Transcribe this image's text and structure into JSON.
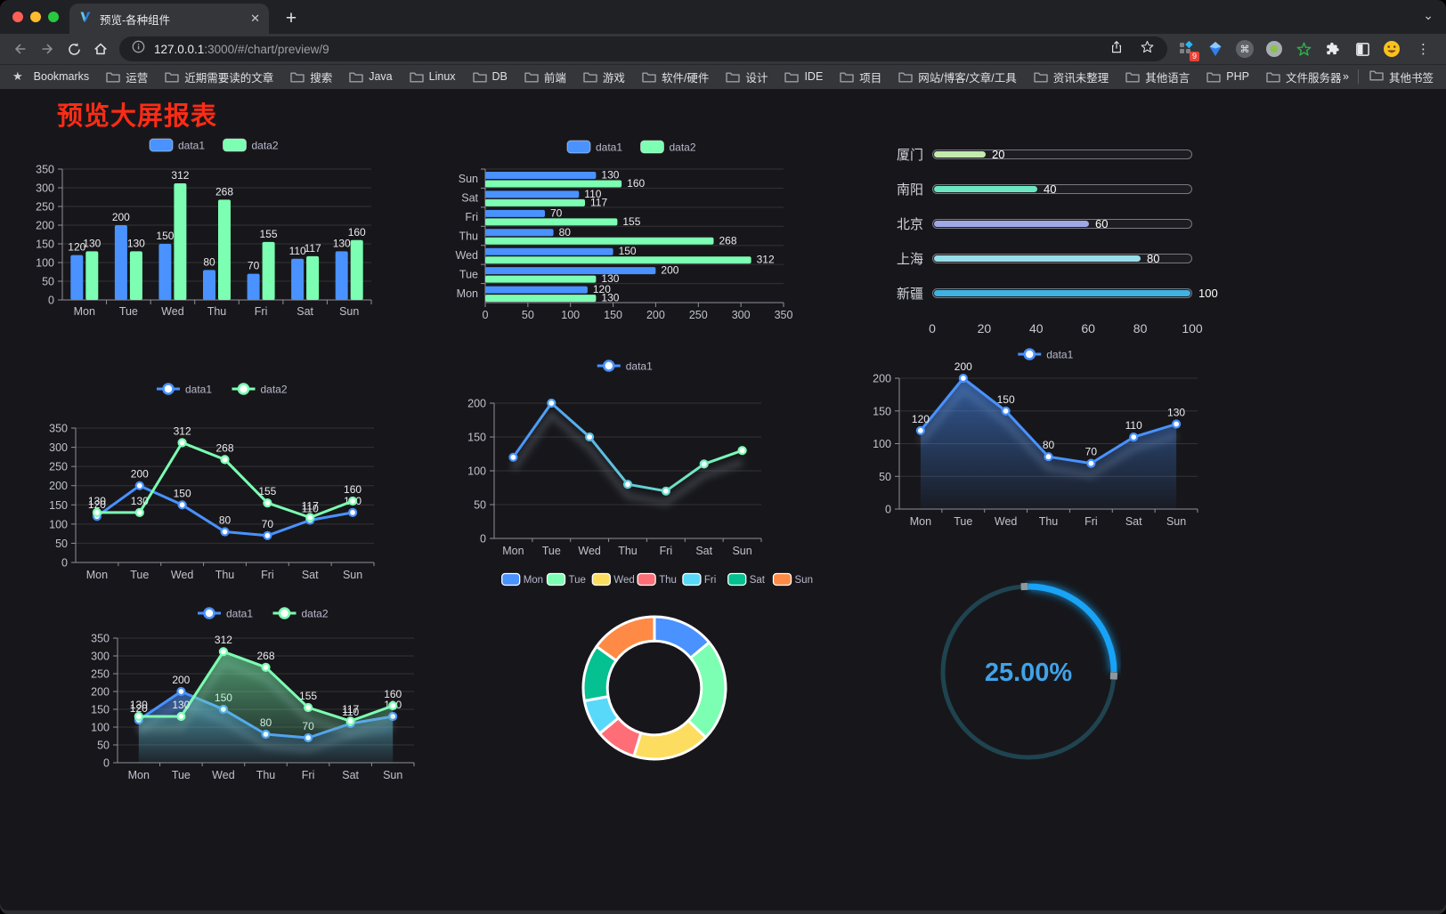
{
  "browser": {
    "traffic_lights": [
      "#ff5f57",
      "#febc2e",
      "#28c840"
    ],
    "tab": {
      "title": "预览-各种组件"
    },
    "address": {
      "host": "127.0.0.1",
      "rest": ":3000/#/chart/preview/9"
    },
    "extensions_badge": "9",
    "bookmarks_bar": {
      "label": "Bookmarks",
      "folders": [
        "运营",
        "近期需要读的文章",
        "搜索",
        "Java",
        "Linux",
        "DB",
        "前端",
        "游戏",
        "软件/硬件",
        "设计",
        "IDE",
        "项目",
        "网站/博客/文章/工具",
        "资讯未整理",
        "其他语言",
        "PHP",
        "文件服务器"
      ],
      "overflow": "»",
      "other": "其他书签"
    }
  },
  "page": {
    "title": "预览大屏报表",
    "title_color": "#fb2c16"
  },
  "chart_data": [
    {
      "id": "grouped-bar",
      "type": "bar",
      "categories": [
        "Mon",
        "Tue",
        "Wed",
        "Thu",
        "Fri",
        "Sat",
        "Sun"
      ],
      "series": [
        {
          "name": "data1",
          "color": "#4992ff",
          "values": [
            120,
            200,
            150,
            80,
            70,
            110,
            130
          ]
        },
        {
          "name": "data2",
          "color": "#7cffb2",
          "values": [
            130,
            130,
            312,
            268,
            155,
            117,
            160
          ]
        }
      ],
      "ylim": [
        0,
        350
      ],
      "yticks": [
        0,
        50,
        100,
        150,
        200,
        250,
        300,
        350
      ],
      "legend_position": "top",
      "grid": true,
      "show_labels": true
    },
    {
      "id": "horizontal-bar",
      "type": "bar-horizontal",
      "categories": [
        "Mon",
        "Tue",
        "Wed",
        "Thu",
        "Fri",
        "Sat",
        "Sun"
      ],
      "series": [
        {
          "name": "data1",
          "color": "#4992ff",
          "values": [
            120,
            200,
            150,
            80,
            70,
            110,
            130
          ]
        },
        {
          "name": "data2",
          "color": "#7cffb2",
          "values": [
            130,
            130,
            312,
            268,
            155,
            117,
            160
          ]
        }
      ],
      "xlim": [
        0,
        350
      ],
      "xticks": [
        0,
        50,
        100,
        150,
        200,
        250,
        300,
        350
      ],
      "legend_position": "top",
      "grid": true,
      "show_labels": true
    },
    {
      "id": "capsule-bar",
      "type": "bar-horizontal",
      "items": [
        {
          "label": "厦门",
          "value": 20,
          "color": "#c4ebad"
        },
        {
          "label": "南阳",
          "value": 40,
          "color": "#6be6c1"
        },
        {
          "label": "北京",
          "value": 60,
          "color": "#a0a7e6"
        },
        {
          "label": "上海",
          "value": 80,
          "color": "#96dee8"
        },
        {
          "label": "新疆",
          "value": 100,
          "color": "#3fb1e3"
        }
      ],
      "xlim": [
        0,
        100
      ],
      "xticks": [
        0,
        20,
        40,
        60,
        80,
        100
      ],
      "show_labels": true
    },
    {
      "id": "multi-line",
      "type": "line",
      "categories": [
        "Mon",
        "Tue",
        "Wed",
        "Thu",
        "Fri",
        "Sat",
        "Sun"
      ],
      "series": [
        {
          "name": "data1",
          "color": "#4992ff",
          "values": [
            120,
            200,
            150,
            80,
            70,
            110,
            130
          ]
        },
        {
          "name": "data2",
          "color": "#7cffb2",
          "values": [
            130,
            130,
            312,
            268,
            155,
            117,
            160
          ]
        }
      ],
      "ylim": [
        0,
        350
      ],
      "yticks": [
        0,
        50,
        100,
        150,
        200,
        250,
        300,
        350
      ],
      "legend_position": "top",
      "grid": true,
      "show_labels": true
    },
    {
      "id": "gradient-line",
      "type": "line",
      "categories": [
        "Mon",
        "Tue",
        "Wed",
        "Thu",
        "Fri",
        "Sat",
        "Sun"
      ],
      "series": [
        {
          "name": "data1",
          "color": "#4992ff",
          "gradient": [
            "#4992ff",
            "#7cffb2"
          ],
          "values": [
            120,
            200,
            150,
            80,
            70,
            110,
            130
          ]
        }
      ],
      "ylim": [
        0,
        200
      ],
      "yticks": [
        0,
        50,
        100,
        150,
        200
      ],
      "legend_position": "top",
      "grid": true,
      "show_labels": false,
      "shadow": true
    },
    {
      "id": "area-line",
      "type": "area",
      "categories": [
        "Mon",
        "Tue",
        "Wed",
        "Thu",
        "Fri",
        "Sat",
        "Sun"
      ],
      "series": [
        {
          "name": "data1",
          "color": "#4992ff",
          "area": true,
          "values": [
            120,
            200,
            150,
            80,
            70,
            110,
            130
          ]
        }
      ],
      "ylim": [
        0,
        200
      ],
      "yticks": [
        0,
        50,
        100,
        150,
        200
      ],
      "legend_position": "top",
      "grid": true,
      "show_labels": true,
      "shadow": true
    },
    {
      "id": "multi-area",
      "type": "area",
      "categories": [
        "Mon",
        "Tue",
        "Wed",
        "Thu",
        "Fri",
        "Sat",
        "Sun"
      ],
      "series": [
        {
          "name": "data1",
          "color": "#4992ff",
          "area": true,
          "values": [
            120,
            200,
            150,
            80,
            70,
            110,
            130
          ]
        },
        {
          "name": "data2",
          "color": "#7cffb2",
          "area": true,
          "values": [
            130,
            130,
            312,
            268,
            155,
            117,
            160
          ]
        }
      ],
      "ylim": [
        0,
        350
      ],
      "yticks": [
        0,
        50,
        100,
        150,
        200,
        250,
        300,
        350
      ],
      "legend_position": "top",
      "grid": true,
      "show_labels": true,
      "shadow": true
    },
    {
      "id": "donut",
      "type": "pie",
      "items": [
        {
          "name": "Mon",
          "value": 120,
          "color": "#4992ff"
        },
        {
          "name": "Tue",
          "value": 200,
          "color": "#7cffb2"
        },
        {
          "name": "Wed",
          "value": 150,
          "color": "#fddd60"
        },
        {
          "name": "Thu",
          "value": 80,
          "color": "#ff6e76"
        },
        {
          "name": "Fri",
          "value": 70,
          "color": "#58d9f9"
        },
        {
          "name": "Sat",
          "value": 110,
          "color": "#05c091"
        },
        {
          "name": "Sun",
          "value": 130,
          "color": "#ff8a45"
        }
      ],
      "inner_radius_ratio": 0.66,
      "legend_position": "top",
      "border_color": "#ffffff"
    },
    {
      "id": "progress-ring",
      "type": "gauge",
      "value": 25,
      "label": "25.00%",
      "color": "#18a3f6",
      "track_color": "#1f4450",
      "text_color": "#41a2e8"
    }
  ]
}
